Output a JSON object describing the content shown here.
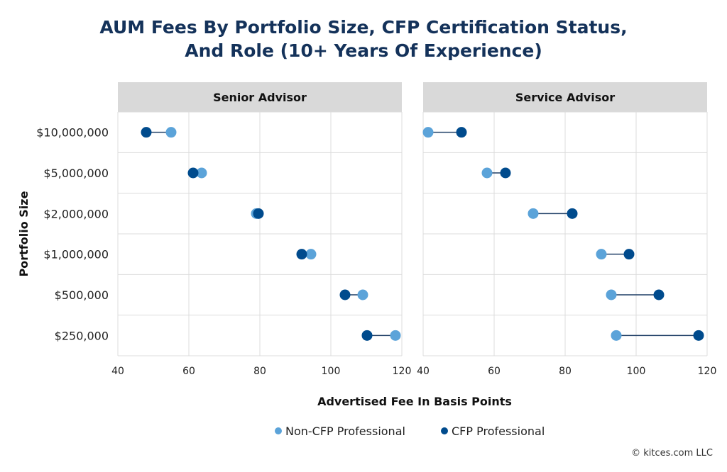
{
  "chart_data": {
    "type": "scatter",
    "subtype": "dumbbell",
    "title_lines": [
      "AUM Fees By Portfolio Size, CFP Certification Status,",
      "And Role (10+ Years Of Experience)"
    ],
    "xlabel": "Advertised Fee In Basis Points",
    "ylabel": "Portfolio Size",
    "xlim": [
      40,
      120
    ],
    "xticks": [
      "40",
      "60",
      "80",
      "100",
      "120"
    ],
    "xtick_values": [
      40,
      60,
      80,
      100,
      120
    ],
    "categories": [
      "$10,000,000",
      "$5,000,000",
      "$2,000,000",
      "$1,000,000",
      "$500,000",
      "$250,000"
    ],
    "grid": true,
    "legend_position": "bottom",
    "series_meta": [
      {
        "name": "Non-CFP Professional",
        "color": "#5ba3d9"
      },
      {
        "name": "CFP Professional",
        "color": "#004b8d"
      }
    ],
    "panels": [
      {
        "title": "Senior Advisor",
        "series": [
          {
            "name": "Non-CFP Professional",
            "values": [
              55,
              63.6,
              79,
              94.4,
              109,
              118.2
            ]
          },
          {
            "name": "CFP Professional",
            "values": [
              48,
              61.2,
              79.6,
              91.8,
              104,
              110.2
            ]
          }
        ]
      },
      {
        "title": "Service Advisor",
        "series": [
          {
            "name": "Non-CFP Professional",
            "values": [
              41.4,
              58,
              71,
              90.2,
              93,
              94.4
            ]
          },
          {
            "name": "CFP Professional",
            "values": [
              50.8,
              63.2,
              82,
              98,
              106.4,
              117.6
            ]
          }
        ]
      }
    ]
  },
  "copyright": "© kitces.com LLC"
}
